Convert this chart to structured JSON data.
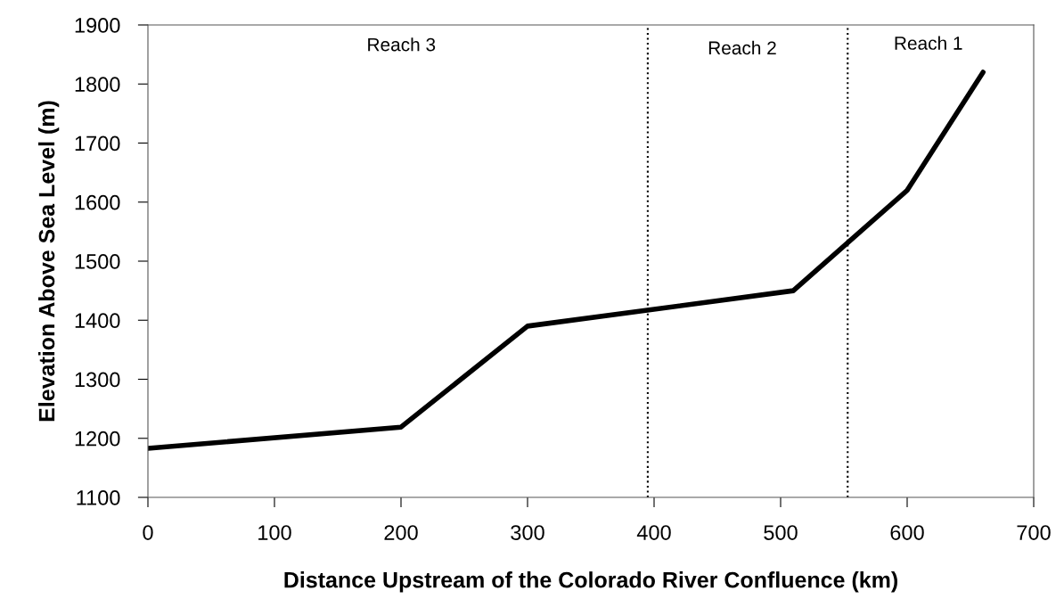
{
  "chart_data": {
    "type": "line",
    "xlabel": "Distance Upstream of the Colorado River Confluence (km)",
    "ylabel": "Elevation Above Sea Level (m)",
    "x": [
      0,
      200,
      300,
      510,
      600,
      660
    ],
    "series": [
      {
        "color": "#000000",
        "values": [
          1183,
          1219,
          1390,
          1450,
          1620,
          1820
        ]
      }
    ],
    "xlim": [
      0,
      700
    ],
    "xticks": [
      0,
      100,
      200,
      300,
      400,
      500,
      600,
      700
    ],
    "ylim": [
      1100,
      1900
    ],
    "yticks": [
      1100,
      1200,
      1300,
      1400,
      1500,
      1600,
      1700,
      1800,
      1900
    ],
    "ref_lines": [
      {
        "axis": "x",
        "value": 395,
        "color": "#000000",
        "line_style": "dotted"
      },
      {
        "axis": "x",
        "value": 553,
        "color": "#000000",
        "line_style": "dotted"
      }
    ],
    "annotations": [
      "Reach 3",
      "Reach 2",
      "Reach 1"
    ],
    "grid": false,
    "legend": false,
    "marker": "none",
    "line_style": "solid"
  }
}
